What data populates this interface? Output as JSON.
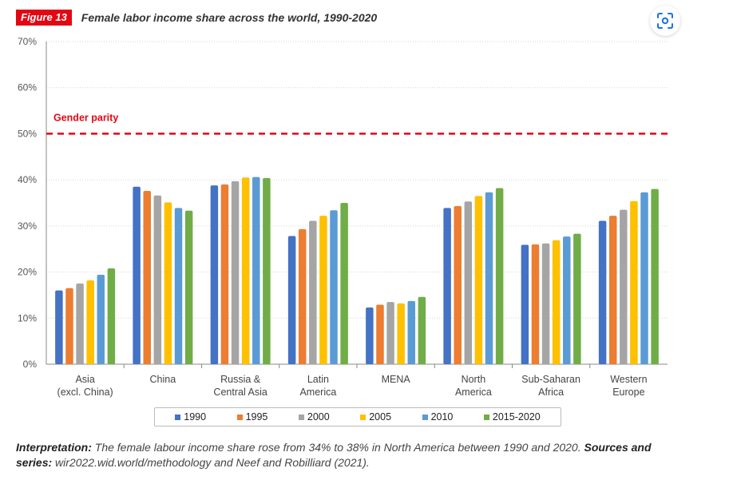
{
  "figure": {
    "badge": "Figure 13",
    "title": "Female labor income share across the world, 1990-2020"
  },
  "colors": {
    "1990": "#4472c4",
    "1995": "#ed7d31",
    "2000": "#a5a5a5",
    "2005": "#ffc000",
    "2010": "#5b9bd5",
    "2015-2020": "#70ad47",
    "parity": "#e30613"
  },
  "chart_data": {
    "type": "bar",
    "title": "Female labor income share across the world, 1990-2020",
    "xlabel": "",
    "ylabel": "",
    "ylim": [
      0,
      70
    ],
    "yticks": [
      "0%",
      "10%",
      "20%",
      "30%",
      "40%",
      "50%",
      "60%",
      "70%"
    ],
    "categories": [
      [
        "Asia",
        "(excl. China)"
      ],
      [
        "China"
      ],
      [
        "Russia &",
        "Central Asia"
      ],
      [
        "Latin",
        "America"
      ],
      [
        "MENA"
      ],
      [
        "North",
        "America"
      ],
      [
        "Sub-Saharan",
        "Africa"
      ],
      [
        "Western",
        "Europe"
      ]
    ],
    "series": [
      {
        "name": "1990",
        "values": [
          16.0,
          38.5,
          38.8,
          27.8,
          12.3,
          33.9,
          25.9,
          31.1
        ]
      },
      {
        "name": "1995",
        "values": [
          16.5,
          37.6,
          39.0,
          29.3,
          12.9,
          34.3,
          26.0,
          32.2
        ]
      },
      {
        "name": "2000",
        "values": [
          17.5,
          36.6,
          39.7,
          31.1,
          13.5,
          35.3,
          26.2,
          33.5
        ]
      },
      {
        "name": "2005",
        "values": [
          18.2,
          35.1,
          40.5,
          32.2,
          13.2,
          36.5,
          26.9,
          35.4
        ]
      },
      {
        "name": "2010",
        "values": [
          19.4,
          33.9,
          40.6,
          33.4,
          13.7,
          37.3,
          27.7,
          37.3
        ]
      },
      {
        "name": "2015-2020",
        "values": [
          20.8,
          33.3,
          40.4,
          35.0,
          14.6,
          38.2,
          28.3,
          38.0
        ]
      }
    ],
    "reference_line": {
      "label": "Gender parity",
      "value": 50
    },
    "legend": [
      "1990",
      "1995",
      "2000",
      "2005",
      "2010",
      "2015-2020"
    ],
    "legend_position": "bottom"
  },
  "footnote": {
    "interp_label": "Interpretation:",
    "interp_text": "The female labour income share rose from 34% to 38% in North America between 1990 and 2020.",
    "sources_label": "Sources and series:",
    "sources_text": "wir2022.wid.world/methodology and Neef and Robilliard (2021)."
  }
}
